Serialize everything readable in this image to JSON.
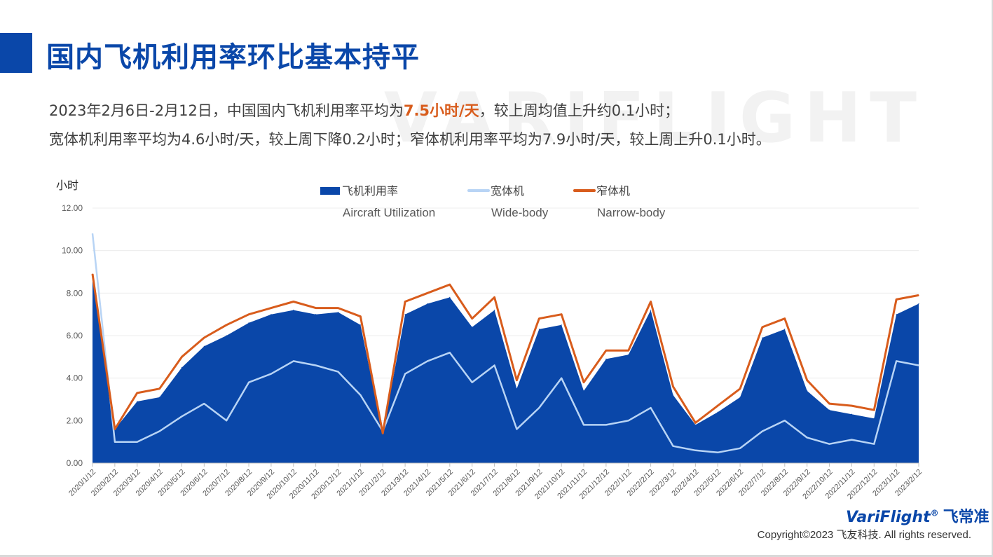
{
  "header": {
    "title": "国内飞机利用率环比基本持平",
    "watermark": "VARIFLIGHT"
  },
  "summary": {
    "line1_a": "2023年2月6日-2月12日，中国国内飞机利用率平均为",
    "line1_highlight": "7.5小时/天",
    "line1_b": "，较上周均值上升约0.1小时；",
    "line2": "宽体机利用率平均为4.6小时/天，较上周下降0.2小时；窄体机利用率平均为7.9小时/天，较上周上升0.1小时。"
  },
  "footer": {
    "logo_text": "VariFlight",
    "logo_mark": "®",
    "logo_cn": "飞常准",
    "copyright": "Copyright©2023 飞友科技. All rights reserved."
  },
  "chart_data": {
    "type": "area",
    "ylabel": "小时",
    "ylim": [
      0,
      12
    ],
    "yticks": [
      "0.00",
      "2.00",
      "4.00",
      "6.00",
      "8.00",
      "10.00",
      "12.00"
    ],
    "grid": true,
    "legend_position": "top-center",
    "categories": [
      "2020/1/12",
      "2020/2/12",
      "2020/3/12",
      "2020/4/12",
      "2020/5/12",
      "2020/6/12",
      "2020/7/12",
      "2020/8/12",
      "2020/9/12",
      "2020/10/12",
      "2020/11/12",
      "2020/12/12",
      "2021/1/12",
      "2021/2/12",
      "2021/3/12",
      "2021/4/12",
      "2021/5/12",
      "2021/6/12",
      "2021/7/12",
      "2021/8/12",
      "2021/9/12",
      "2021/10/12",
      "2021/11/12",
      "2021/12/12",
      "2022/1/12",
      "2022/2/12",
      "2022/3/12",
      "2022/4/12",
      "2022/5/12",
      "2022/6/12",
      "2022/7/12",
      "2022/8/12",
      "2022/9/12",
      "2022/10/12",
      "2022/11/12",
      "2022/12/12",
      "2023/1/12",
      "2023/2/12"
    ],
    "series": [
      {
        "name": "飞机利用率",
        "name_en": "Aircraft Utilization",
        "color": "#0a47a9",
        "style": "area",
        "values": [
          8.8,
          1.6,
          2.9,
          3.1,
          4.5,
          5.5,
          6.0,
          6.6,
          7.0,
          7.2,
          7.0,
          7.1,
          6.5,
          1.4,
          7.0,
          7.5,
          7.8,
          6.4,
          7.2,
          3.5,
          6.3,
          6.5,
          3.4,
          4.9,
          5.1,
          7.2,
          3.2,
          1.8,
          2.4,
          3.1,
          5.9,
          6.3,
          3.4,
          2.5,
          2.3,
          2.1,
          7.0,
          7.5
        ]
      },
      {
        "name": "宽体机",
        "name_en": "Wide-body",
        "color": "#b8d4f5",
        "style": "line",
        "values": [
          10.8,
          1.0,
          1.0,
          1.5,
          2.2,
          2.8,
          2.0,
          3.8,
          4.2,
          4.8,
          4.6,
          4.3,
          3.2,
          1.5,
          4.2,
          4.8,
          5.2,
          3.8,
          4.6,
          1.6,
          2.6,
          4.0,
          1.8,
          1.8,
          2.0,
          2.6,
          0.8,
          0.6,
          0.5,
          0.7,
          1.5,
          2.0,
          1.2,
          0.9,
          1.1,
          0.9,
          4.8,
          4.6
        ]
      },
      {
        "name": "窄体机",
        "name_en": "Narrow-body",
        "color": "#d85c1c",
        "style": "line",
        "values": [
          8.9,
          1.6,
          3.3,
          3.5,
          5.0,
          5.9,
          6.5,
          7.0,
          7.3,
          7.6,
          7.3,
          7.3,
          6.9,
          1.4,
          7.6,
          8.0,
          8.4,
          6.8,
          7.8,
          3.9,
          6.8,
          7.0,
          3.8,
          5.3,
          5.3,
          7.6,
          3.6,
          1.9,
          2.7,
          3.5,
          6.4,
          6.8,
          3.9,
          2.8,
          2.7,
          2.5,
          7.7,
          7.9
        ]
      }
    ]
  }
}
